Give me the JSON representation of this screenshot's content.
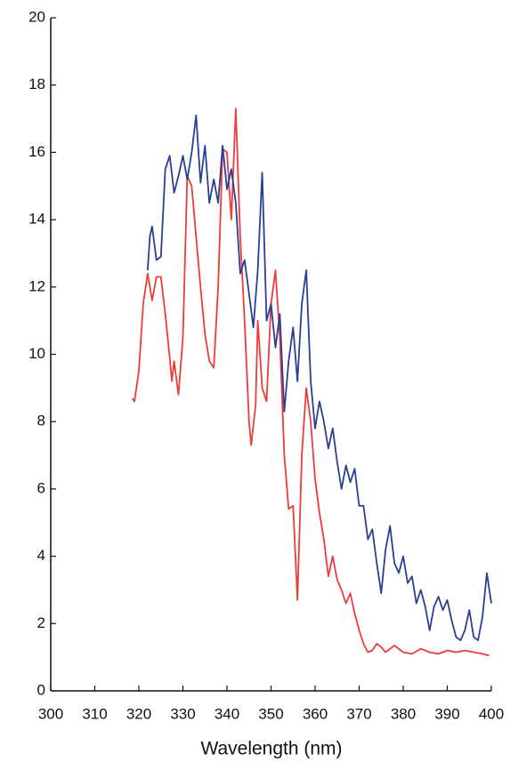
{
  "chart_data": {
    "type": "line",
    "x_label": "Wavelength (nm)",
    "xlim": [
      300,
      400
    ],
    "xticks": [
      300,
      310,
      320,
      330,
      340,
      350,
      360,
      370,
      380,
      390,
      400
    ],
    "ylim": [
      0,
      20
    ],
    "yticks": [
      0,
      2,
      4,
      6,
      8,
      10,
      12,
      14,
      16,
      18,
      20
    ],
    "series": [
      {
        "color": "#ee3b3b",
        "x": [
          318.5,
          319,
          320,
          321,
          322,
          323,
          324,
          325,
          326,
          327,
          327.5,
          328,
          329,
          330,
          331,
          332,
          333,
          334,
          335,
          336,
          337,
          338,
          339,
          340,
          341,
          342,
          343,
          344,
          345,
          345.5,
          346.5,
          347,
          348,
          349,
          350,
          351,
          352,
          353,
          354,
          355,
          356,
          357,
          358,
          359,
          360,
          361,
          362,
          363,
          364,
          365,
          366,
          367,
          368,
          369,
          370,
          371,
          372,
          373,
          374,
          375,
          376,
          377,
          378,
          380,
          382,
          384,
          386,
          388,
          390,
          392,
          394,
          396,
          398,
          399.5
        ],
        "values": [
          8.7,
          8.6,
          9.5,
          11.5,
          12.4,
          11.6,
          12.3,
          12.3,
          11.2,
          9.9,
          9.2,
          9.8,
          8.8,
          10.5,
          15.3,
          15.0,
          13.5,
          12.0,
          10.6,
          9.8,
          9.6,
          12.0,
          16.1,
          16.0,
          14.0,
          17.3,
          13.5,
          11.0,
          8.0,
          7.3,
          8.5,
          11.0,
          9.0,
          8.6,
          11.5,
          12.5,
          10.5,
          7.0,
          5.4,
          5.5,
          2.7,
          7.0,
          9.0,
          8.0,
          6.3,
          5.3,
          4.5,
          3.4,
          4.0,
          3.3,
          3.0,
          2.6,
          2.9,
          2.3,
          1.8,
          1.4,
          1.15,
          1.2,
          1.4,
          1.3,
          1.15,
          1.25,
          1.35,
          1.15,
          1.1,
          1.25,
          1.15,
          1.1,
          1.2,
          1.15,
          1.2,
          1.15,
          1.1,
          1.05
        ]
      },
      {
        "color": "#2a3f93",
        "x": [
          322,
          322.5,
          323,
          324,
          325,
          326,
          327,
          328,
          329,
          330,
          331,
          332,
          333,
          334,
          335,
          336,
          337,
          338,
          339,
          340,
          341,
          342,
          343,
          344,
          345,
          346,
          347,
          348,
          349,
          350,
          351,
          352,
          353,
          354,
          355,
          356,
          357,
          358,
          359,
          360,
          361,
          362,
          363,
          364,
          365,
          366,
          367,
          368,
          369,
          370,
          371,
          372,
          373,
          374,
          375,
          376,
          377,
          378,
          379,
          380,
          381,
          382,
          383,
          384,
          385,
          386,
          387,
          388,
          389,
          390,
          391,
          392,
          393,
          394,
          395,
          396,
          397,
          398,
          399,
          400
        ],
        "values": [
          12.5,
          13.5,
          13.8,
          12.8,
          12.9,
          15.5,
          15.9,
          14.8,
          15.3,
          15.9,
          15.2,
          16.0,
          17.1,
          15.1,
          16.2,
          14.5,
          15.2,
          14.5,
          16.2,
          14.9,
          15.5,
          14.5,
          12.4,
          12.8,
          11.8,
          10.8,
          12.5,
          15.4,
          11.0,
          11.5,
          10.2,
          11.2,
          8.3,
          9.8,
          10.8,
          9.2,
          11.5,
          12.5,
          9.2,
          7.8,
          8.6,
          8.0,
          7.2,
          7.8,
          6.8,
          6.0,
          6.7,
          6.2,
          6.6,
          5.5,
          5.5,
          4.5,
          4.8,
          3.8,
          2.9,
          4.2,
          4.9,
          3.8,
          3.5,
          4.0,
          3.2,
          3.4,
          2.6,
          3.0,
          2.5,
          1.8,
          2.5,
          2.8,
          2.4,
          2.7,
          2.1,
          1.6,
          1.5,
          1.8,
          2.4,
          1.6,
          1.5,
          2.2,
          3.5,
          2.6
        ]
      }
    ]
  }
}
